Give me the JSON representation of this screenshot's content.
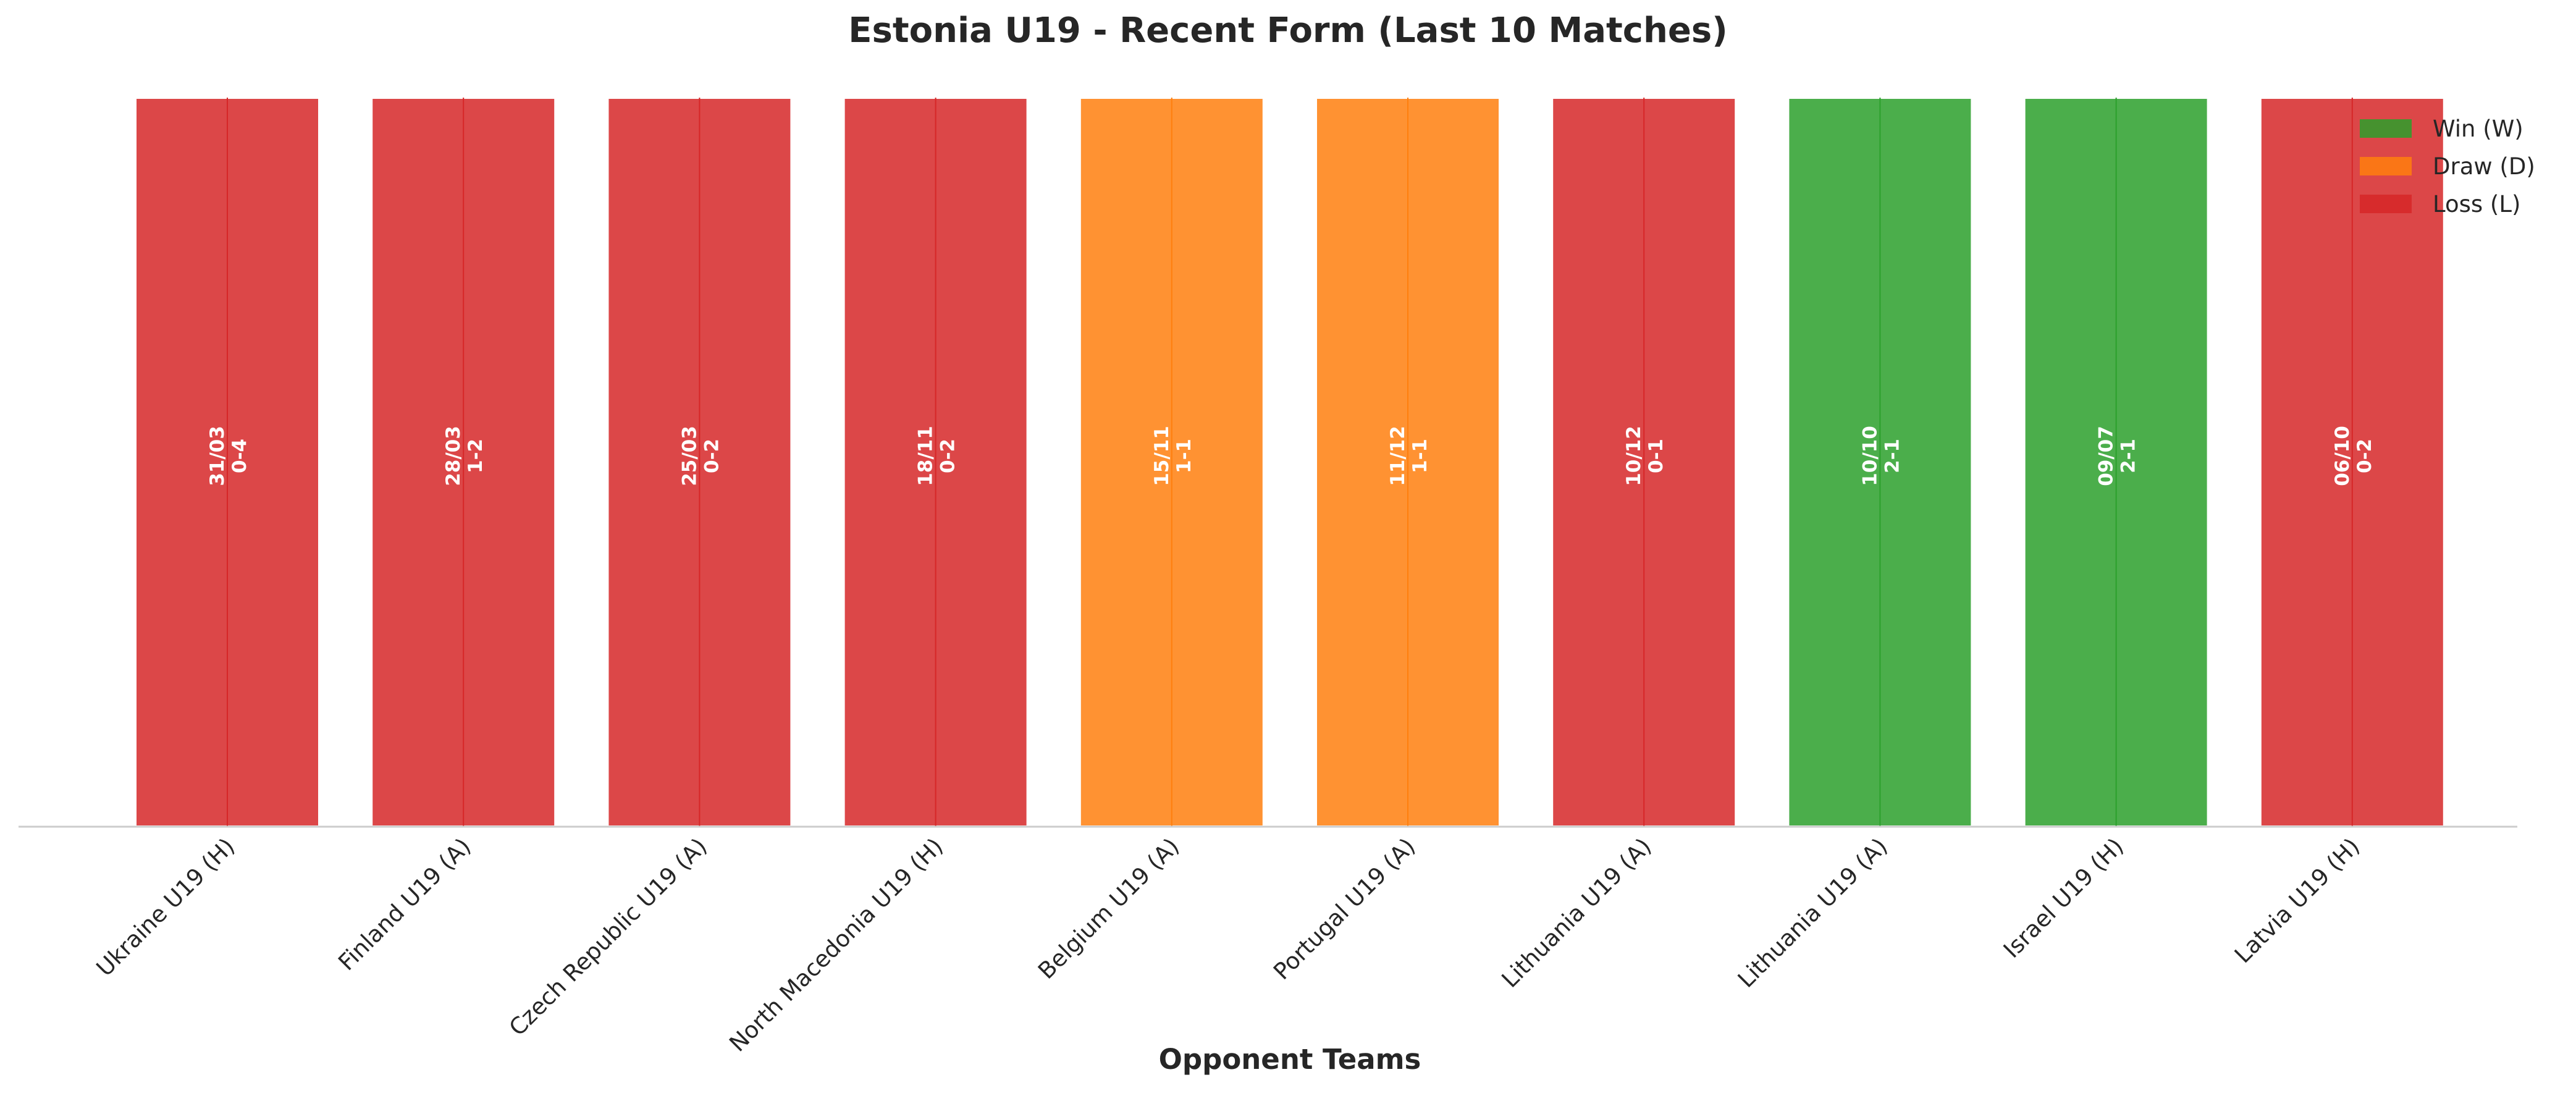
{
  "chart_data": {
    "type": "bar",
    "title": "Estonia U19 - Recent Form (Last 10 Matches)",
    "xlabel": "Opponent Teams",
    "ylabel": "",
    "ylim": [
      0,
      1
    ],
    "grid": false,
    "legend_position": "top-right",
    "categories": [
      "Ukraine U19 (H)",
      "Finland U19 (A)",
      "Czech Republic U19 (A)",
      "North Macedonia U19 (H)",
      "Belgium U19 (A)",
      "Portugal U19 (A)",
      "Lithuania U19 (A)",
      "Lithuania U19 (A)",
      "Israel U19 (H)",
      "Latvia U19 (H)"
    ],
    "values": [
      1,
      1,
      1,
      1,
      1,
      1,
      1,
      1,
      1,
      1
    ],
    "results": [
      "L",
      "L",
      "L",
      "L",
      "D",
      "D",
      "L",
      "W",
      "W",
      "L"
    ],
    "dates": [
      "31/03",
      "28/03",
      "25/03",
      "18/11",
      "15/11",
      "11/12",
      "10/12",
      "10/10",
      "09/07",
      "06/10"
    ],
    "scores": [
      "0-4",
      "1-2",
      "0-2",
      "0-2",
      "1-1",
      "1-1",
      "0-1",
      "2-1",
      "2-1",
      "0-2"
    ],
    "legend": [
      {
        "key": "W",
        "label": "Win (W)",
        "color": "#2ca02c"
      },
      {
        "key": "D",
        "label": "Draw (D)",
        "color": "#ff7f0e"
      },
      {
        "key": "L",
        "label": "Loss (L)",
        "color": "#d62728"
      }
    ]
  }
}
